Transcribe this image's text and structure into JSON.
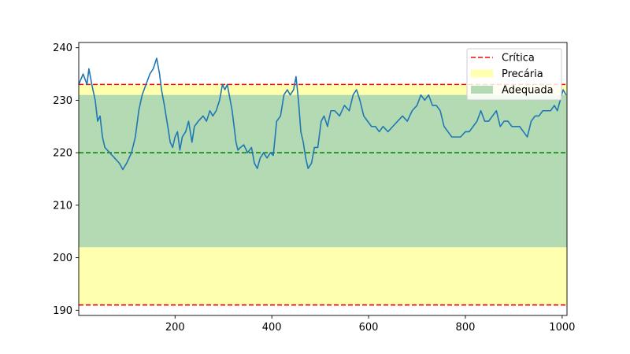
{
  "chart_data": {
    "type": "line",
    "title": "",
    "xlabel": "",
    "ylabel": "",
    "xlim": [
      1,
      1010
    ],
    "ylim": [
      189,
      241
    ],
    "xticks": [
      200,
      400,
      600,
      800,
      1000
    ],
    "yticks": [
      190,
      200,
      210,
      220,
      230,
      240
    ],
    "x_tick_labels": [
      "200",
      "400",
      "600",
      "800",
      "1000"
    ],
    "y_tick_labels": [
      "190",
      "200",
      "210",
      "220",
      "230",
      "240"
    ],
    "grid": false,
    "legend_position": "top-right",
    "bands": [
      {
        "name": "Precária",
        "from": 191,
        "to": 233,
        "color": "#ffffb0"
      },
      {
        "name": "Adequada",
        "from": 202,
        "to": 231,
        "color": "#b3dab3"
      }
    ],
    "hlines": [
      {
        "y": 233,
        "color": "#ff0000",
        "style": "dashed",
        "label": "Crítica"
      },
      {
        "y": 191,
        "color": "#ff0000",
        "style": "dashed"
      },
      {
        "y": 220,
        "color": "#008000",
        "style": "dashed"
      }
    ],
    "legend": [
      {
        "label": "Crítica",
        "kind": "line",
        "color": "#ff0000"
      },
      {
        "label": "Precária",
        "kind": "patch",
        "color": "#ffffb0"
      },
      {
        "label": "Adequada",
        "kind": "patch",
        "color": "#b3dab3"
      }
    ],
    "series": [
      {
        "color": "#1f77b4",
        "points": [
          [
            1,
            233
          ],
          [
            10,
            235
          ],
          [
            18,
            233
          ],
          [
            22,
            236
          ],
          [
            28,
            233
          ],
          [
            35,
            230
          ],
          [
            40,
            226
          ],
          [
            45,
            227
          ],
          [
            50,
            223
          ],
          [
            55,
            221
          ],
          [
            65,
            220
          ],
          [
            75,
            219
          ],
          [
            85,
            218
          ],
          [
            92,
            216.8
          ],
          [
            100,
            218
          ],
          [
            110,
            220
          ],
          [
            118,
            223
          ],
          [
            125,
            228
          ],
          [
            132,
            231
          ],
          [
            140,
            233
          ],
          [
            148,
            235
          ],
          [
            155,
            236
          ],
          [
            162,
            238
          ],
          [
            168,
            235
          ],
          [
            172,
            232
          ],
          [
            178,
            229
          ],
          [
            185,
            225
          ],
          [
            190,
            222
          ],
          [
            195,
            221
          ],
          [
            200,
            223
          ],
          [
            205,
            224
          ],
          [
            210,
            220.5
          ],
          [
            215,
            223
          ],
          [
            222,
            224
          ],
          [
            228,
            226
          ],
          [
            235,
            222
          ],
          [
            240,
            225
          ],
          [
            248,
            226
          ],
          [
            258,
            227
          ],
          [
            265,
            226
          ],
          [
            272,
            228
          ],
          [
            278,
            227
          ],
          [
            285,
            228
          ],
          [
            292,
            230
          ],
          [
            298,
            233
          ],
          [
            303,
            232
          ],
          [
            308,
            233
          ],
          [
            312,
            231
          ],
          [
            318,
            228
          ],
          [
            322,
            225
          ],
          [
            326,
            222
          ],
          [
            330,
            220.5
          ],
          [
            335,
            221
          ],
          [
            342,
            221.5
          ],
          [
            350,
            220
          ],
          [
            358,
            221
          ],
          [
            364,
            218
          ],
          [
            370,
            217
          ],
          [
            376,
            219
          ],
          [
            383,
            220
          ],
          [
            390,
            219
          ],
          [
            397,
            220
          ],
          [
            403,
            219.5
          ],
          [
            410,
            226
          ],
          [
            418,
            227
          ],
          [
            425,
            231
          ],
          [
            432,
            232
          ],
          [
            438,
            231
          ],
          [
            445,
            232
          ],
          [
            450,
            234.5
          ],
          [
            455,
            230
          ],
          [
            460,
            224
          ],
          [
            465,
            222
          ],
          [
            470,
            219
          ],
          [
            475,
            217
          ],
          [
            482,
            218
          ],
          [
            488,
            221
          ],
          [
            495,
            221
          ],
          [
            502,
            226
          ],
          [
            508,
            227
          ],
          [
            515,
            225
          ],
          [
            522,
            228
          ],
          [
            530,
            228
          ],
          [
            540,
            227
          ],
          [
            550,
            229
          ],
          [
            560,
            228
          ],
          [
            568,
            231
          ],
          [
            575,
            232
          ],
          [
            582,
            230
          ],
          [
            590,
            227
          ],
          [
            598,
            226
          ],
          [
            606,
            225
          ],
          [
            614,
            225
          ],
          [
            622,
            224
          ],
          [
            630,
            225
          ],
          [
            640,
            224
          ],
          [
            650,
            225
          ],
          [
            660,
            226
          ],
          [
            670,
            227
          ],
          [
            680,
            226
          ],
          [
            690,
            228
          ],
          [
            700,
            229
          ],
          [
            708,
            231
          ],
          [
            716,
            230
          ],
          [
            724,
            231
          ],
          [
            732,
            229
          ],
          [
            740,
            229
          ],
          [
            748,
            228
          ],
          [
            756,
            225
          ],
          [
            764,
            224
          ],
          [
            772,
            223
          ],
          [
            780,
            223
          ],
          [
            790,
            223
          ],
          [
            800,
            224
          ],
          [
            808,
            224
          ],
          [
            816,
            225
          ],
          [
            824,
            226
          ],
          [
            832,
            228
          ],
          [
            840,
            226
          ],
          [
            848,
            226
          ],
          [
            856,
            227
          ],
          [
            864,
            228
          ],
          [
            872,
            225
          ],
          [
            880,
            226
          ],
          [
            888,
            226
          ],
          [
            896,
            225
          ],
          [
            904,
            225
          ],
          [
            912,
            225
          ],
          [
            920,
            224
          ],
          [
            928,
            223
          ],
          [
            936,
            226
          ],
          [
            944,
            227
          ],
          [
            952,
            227
          ],
          [
            960,
            228
          ],
          [
            968,
            228
          ],
          [
            976,
            228
          ],
          [
            984,
            229
          ],
          [
            990,
            228
          ],
          [
            996,
            230
          ],
          [
            1002,
            232
          ],
          [
            1008,
            231
          ]
        ]
      }
    ]
  }
}
